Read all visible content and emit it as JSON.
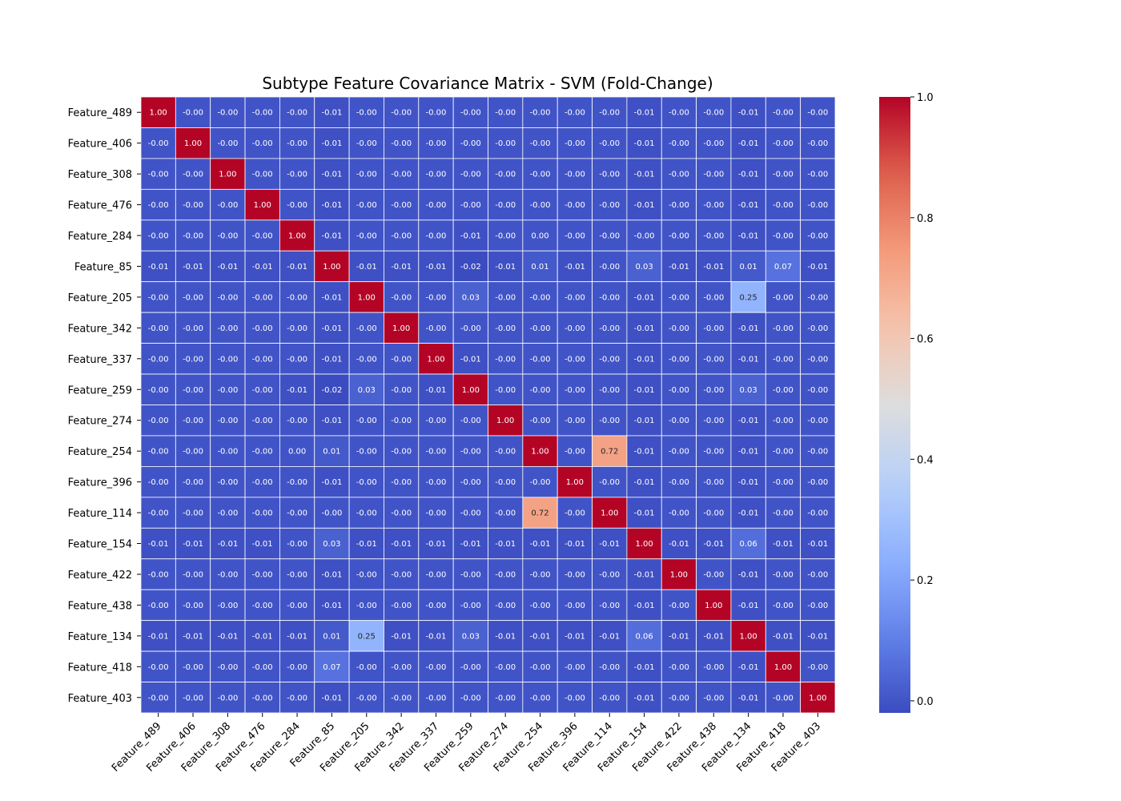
{
  "chart_data": {
    "type": "heatmap",
    "title": "Subtype Feature Covariance Matrix - SVM (Fold-Change)",
    "xlabel": "",
    "ylabel": "",
    "labels": [
      "Feature_489",
      "Feature_406",
      "Feature_308",
      "Feature_476",
      "Feature_284",
      "Feature_85",
      "Feature_205",
      "Feature_342",
      "Feature_337",
      "Feature_259",
      "Feature_274",
      "Feature_254",
      "Feature_396",
      "Feature_114",
      "Feature_154",
      "Feature_422",
      "Feature_438",
      "Feature_134",
      "Feature_418",
      "Feature_403"
    ],
    "values": [
      [
        "1.00",
        "-0.00",
        "-0.00",
        "-0.00",
        "-0.00",
        "-0.01",
        "-0.00",
        "-0.00",
        "-0.00",
        "-0.00",
        "-0.00",
        "-0.00",
        "-0.00",
        "-0.00",
        "-0.01",
        "-0.00",
        "-0.00",
        "-0.01",
        "-0.00",
        "-0.00"
      ],
      [
        "-0.00",
        "1.00",
        "-0.00",
        "-0.00",
        "-0.00",
        "-0.01",
        "-0.00",
        "-0.00",
        "-0.00",
        "-0.00",
        "-0.00",
        "-0.00",
        "-0.00",
        "-0.00",
        "-0.01",
        "-0.00",
        "-0.00",
        "-0.01",
        "-0.00",
        "-0.00"
      ],
      [
        "-0.00",
        "-0.00",
        "1.00",
        "-0.00",
        "-0.00",
        "-0.01",
        "-0.00",
        "-0.00",
        "-0.00",
        "-0.00",
        "-0.00",
        "-0.00",
        "-0.00",
        "-0.00",
        "-0.01",
        "-0.00",
        "-0.00",
        "-0.01",
        "-0.00",
        "-0.00"
      ],
      [
        "-0.00",
        "-0.00",
        "-0.00",
        "1.00",
        "-0.00",
        "-0.01",
        "-0.00",
        "-0.00",
        "-0.00",
        "-0.00",
        "-0.00",
        "-0.00",
        "-0.00",
        "-0.00",
        "-0.01",
        "-0.00",
        "-0.00",
        "-0.01",
        "-0.00",
        "-0.00"
      ],
      [
        "-0.00",
        "-0.00",
        "-0.00",
        "-0.00",
        "1.00",
        "-0.01",
        "-0.00",
        "-0.00",
        "-0.00",
        "-0.01",
        "-0.00",
        "0.00",
        "-0.00",
        "-0.00",
        "-0.00",
        "-0.00",
        "-0.00",
        "-0.01",
        "-0.00",
        "-0.00"
      ],
      [
        "-0.01",
        "-0.01",
        "-0.01",
        "-0.01",
        "-0.01",
        "1.00",
        "-0.01",
        "-0.01",
        "-0.01",
        "-0.02",
        "-0.01",
        "0.01",
        "-0.01",
        "-0.00",
        "0.03",
        "-0.01",
        "-0.01",
        "0.01",
        "0.07",
        "-0.01"
      ],
      [
        "-0.00",
        "-0.00",
        "-0.00",
        "-0.00",
        "-0.00",
        "-0.01",
        "1.00",
        "-0.00",
        "-0.00",
        "0.03",
        "-0.00",
        "-0.00",
        "-0.00",
        "-0.00",
        "-0.01",
        "-0.00",
        "-0.00",
        "0.25",
        "-0.00",
        "-0.00"
      ],
      [
        "-0.00",
        "-0.00",
        "-0.00",
        "-0.00",
        "-0.00",
        "-0.01",
        "-0.00",
        "1.00",
        "-0.00",
        "-0.00",
        "-0.00",
        "-0.00",
        "-0.00",
        "-0.00",
        "-0.01",
        "-0.00",
        "-0.00",
        "-0.01",
        "-0.00",
        "-0.00"
      ],
      [
        "-0.00",
        "-0.00",
        "-0.00",
        "-0.00",
        "-0.00",
        "-0.01",
        "-0.00",
        "-0.00",
        "1.00",
        "-0.01",
        "-0.00",
        "-0.00",
        "-0.00",
        "-0.00",
        "-0.01",
        "-0.00",
        "-0.00",
        "-0.01",
        "-0.00",
        "-0.00"
      ],
      [
        "-0.00",
        "-0.00",
        "-0.00",
        "-0.00",
        "-0.01",
        "-0.02",
        "0.03",
        "-0.00",
        "-0.01",
        "1.00",
        "-0.00",
        "-0.00",
        "-0.00",
        "-0.00",
        "-0.01",
        "-0.00",
        "-0.00",
        "0.03",
        "-0.00",
        "-0.00"
      ],
      [
        "-0.00",
        "-0.00",
        "-0.00",
        "-0.00",
        "-0.00",
        "-0.01",
        "-0.00",
        "-0.00",
        "-0.00",
        "-0.00",
        "1.00",
        "-0.00",
        "-0.00",
        "-0.00",
        "-0.01",
        "-0.00",
        "-0.00",
        "-0.01",
        "-0.00",
        "-0.00"
      ],
      [
        "-0.00",
        "-0.00",
        "-0.00",
        "-0.00",
        "0.00",
        "0.01",
        "-0.00",
        "-0.00",
        "-0.00",
        "-0.00",
        "-0.00",
        "1.00",
        "-0.00",
        "0.72",
        "-0.01",
        "-0.00",
        "-0.00",
        "-0.01",
        "-0.00",
        "-0.00"
      ],
      [
        "-0.00",
        "-0.00",
        "-0.00",
        "-0.00",
        "-0.00",
        "-0.01",
        "-0.00",
        "-0.00",
        "-0.00",
        "-0.00",
        "-0.00",
        "-0.00",
        "1.00",
        "-0.00",
        "-0.01",
        "-0.00",
        "-0.00",
        "-0.01",
        "-0.00",
        "-0.00"
      ],
      [
        "-0.00",
        "-0.00",
        "-0.00",
        "-0.00",
        "-0.00",
        "-0.00",
        "-0.00",
        "-0.00",
        "-0.00",
        "-0.00",
        "-0.00",
        "0.72",
        "-0.00",
        "1.00",
        "-0.01",
        "-0.00",
        "-0.00",
        "-0.01",
        "-0.00",
        "-0.00"
      ],
      [
        "-0.01",
        "-0.01",
        "-0.01",
        "-0.01",
        "-0.00",
        "0.03",
        "-0.01",
        "-0.01",
        "-0.01",
        "-0.01",
        "-0.01",
        "-0.01",
        "-0.01",
        "-0.01",
        "1.00",
        "-0.01",
        "-0.01",
        "0.06",
        "-0.01",
        "-0.01"
      ],
      [
        "-0.00",
        "-0.00",
        "-0.00",
        "-0.00",
        "-0.00",
        "-0.01",
        "-0.00",
        "-0.00",
        "-0.00",
        "-0.00",
        "-0.00",
        "-0.00",
        "-0.00",
        "-0.00",
        "-0.01",
        "1.00",
        "-0.00",
        "-0.01",
        "-0.00",
        "-0.00"
      ],
      [
        "-0.00",
        "-0.00",
        "-0.00",
        "-0.00",
        "-0.00",
        "-0.01",
        "-0.00",
        "-0.00",
        "-0.00",
        "-0.00",
        "-0.00",
        "-0.00",
        "-0.00",
        "-0.00",
        "-0.01",
        "-0.00",
        "1.00",
        "-0.01",
        "-0.00",
        "-0.00"
      ],
      [
        "-0.01",
        "-0.01",
        "-0.01",
        "-0.01",
        "-0.01",
        "0.01",
        "0.25",
        "-0.01",
        "-0.01",
        "0.03",
        "-0.01",
        "-0.01",
        "-0.01",
        "-0.01",
        "0.06",
        "-0.01",
        "-0.01",
        "1.00",
        "-0.01",
        "-0.01"
      ],
      [
        "-0.00",
        "-0.00",
        "-0.00",
        "-0.00",
        "-0.00",
        "0.07",
        "-0.00",
        "-0.00",
        "-0.00",
        "-0.00",
        "-0.00",
        "-0.00",
        "-0.00",
        "-0.00",
        "-0.01",
        "-0.00",
        "-0.00",
        "-0.01",
        "1.00",
        "-0.00"
      ],
      [
        "-0.00",
        "-0.00",
        "-0.00",
        "-0.00",
        "-0.00",
        "-0.01",
        "-0.00",
        "-0.00",
        "-0.00",
        "-0.00",
        "-0.00",
        "-0.00",
        "-0.00",
        "-0.00",
        "-0.01",
        "-0.00",
        "-0.00",
        "-0.01",
        "-0.00",
        "1.00"
      ]
    ],
    "colorbar": {
      "range": [
        -0.02,
        1.0
      ],
      "ticks": [
        "0.0",
        "0.2",
        "0.4",
        "0.6",
        "0.8",
        "1.0"
      ],
      "colormap": "coolwarm",
      "low_color": "#3b4cc0",
      "mid_color": "#dddddd",
      "high_color": "#b40426"
    },
    "grid": false,
    "legend": "colorbar-right"
  }
}
